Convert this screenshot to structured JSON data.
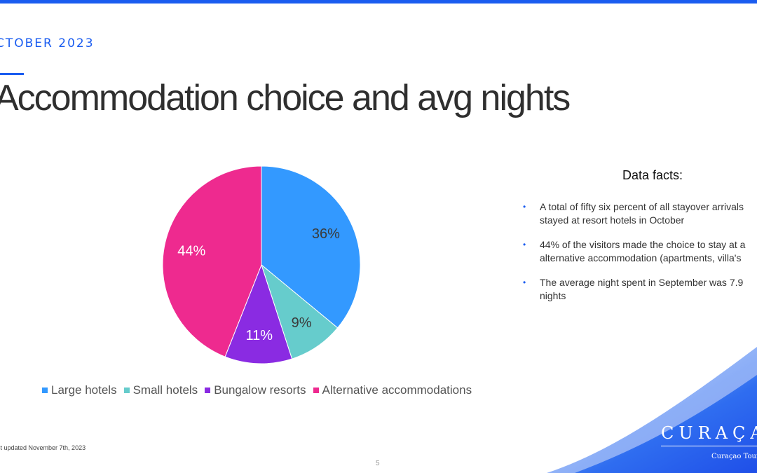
{
  "header": {
    "date_label": "CTOBER 2023",
    "title": "Accommodation choice and avg nights"
  },
  "chart_data": {
    "type": "pie",
    "title": "",
    "categories": [
      "Large hotels",
      "Small hotels",
      "Bungalow resorts",
      "Alternative accommodations"
    ],
    "values": [
      36,
      9,
      11,
      44
    ],
    "labels": [
      "36%",
      "9%",
      "11%",
      "44%"
    ],
    "colors": [
      "#3399ff",
      "#66cccc",
      "#8a2be2",
      "#ee2a8f"
    ],
    "legend_position": "bottom"
  },
  "facts": {
    "title": "Data facts:",
    "items": [
      {
        "line1": "A total of fifty six percent of all stayover arrivals",
        "line2": "stayed at resort hotels in October"
      },
      {
        "line1": "44% of the visitors made the choice to stay at a",
        "line2": "alternative accommodation (apartments, villa's"
      },
      {
        "line1": "The average night spent in September was 7.9",
        "line2": "nights"
      }
    ]
  },
  "footer": {
    "footnote": "st updated November 7th, 2023",
    "page_number": "5"
  },
  "logo": {
    "text": "CURAÇA",
    "subtext": "Curaçao Tour"
  },
  "colors": {
    "accent": "#1a5cf0",
    "wave_light": "#8fc3ff",
    "wave_dark": "#1f4fe8"
  }
}
